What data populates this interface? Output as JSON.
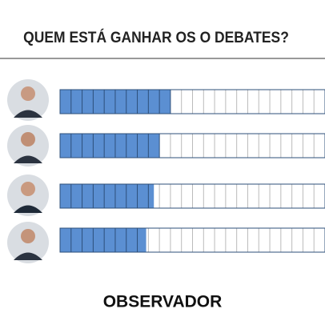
{
  "chart_data": {
    "type": "bar",
    "orientation": "horizontal",
    "title": "QUEM ESTÁ GANHAR OS O DEBATES?",
    "categories": [
      null,
      null,
      null,
      null
    ],
    "values": [
      10,
      9,
      8.5,
      7.8
    ],
    "color": "#5b8fd2",
    "xlim": [
      0,
      24
    ]
  },
  "footer": "OBSERVADOR"
}
